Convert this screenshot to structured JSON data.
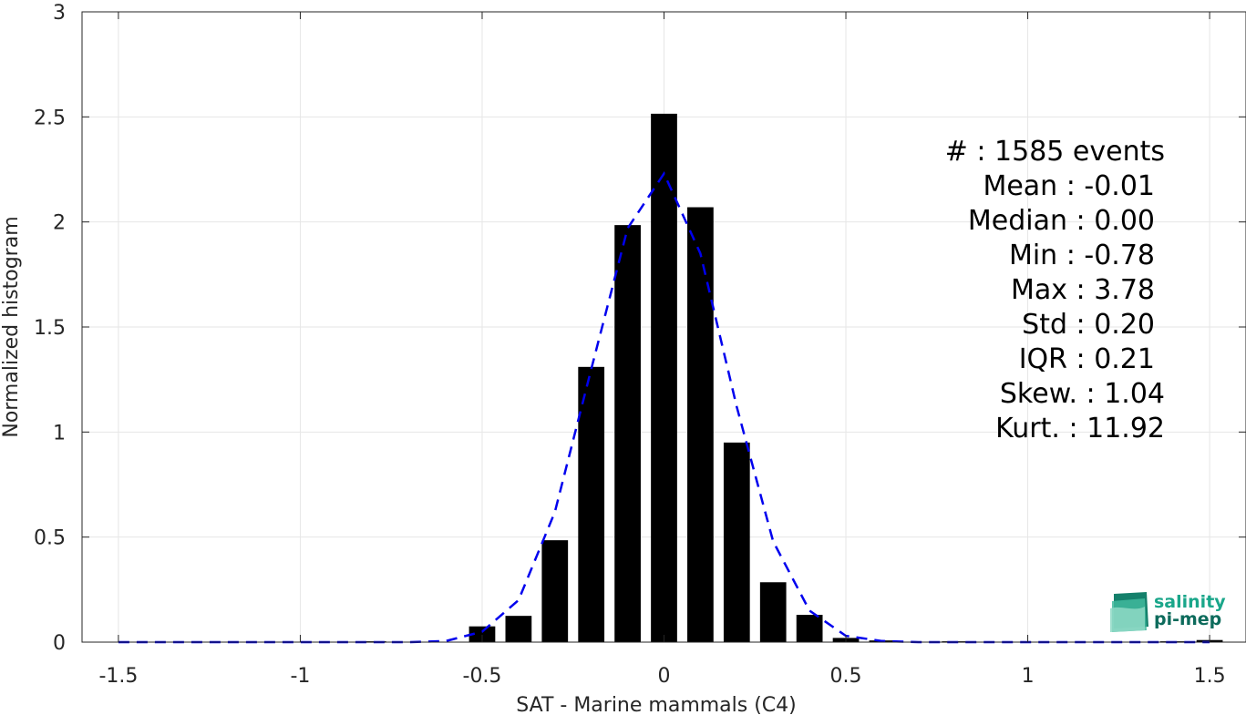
{
  "chart_data": {
    "type": "bar",
    "xlabel": "SAT - Marine mammals (C4)",
    "ylabel": "Normalized histogram",
    "xlim": [
      -1.6,
      1.6
    ],
    "ylim": [
      0,
      3
    ],
    "grid": true,
    "xticks": [
      "-1.5",
      "-1",
      "-0.5",
      "0",
      "0.5",
      "1",
      "1.5"
    ],
    "yticks": [
      "0",
      "0.5",
      "1",
      "1.5",
      "2",
      "2.5",
      "3"
    ],
    "bar_width": 0.072,
    "bars": {
      "x": [
        -0.8,
        -0.5,
        -0.4,
        -0.3,
        -0.2,
        -0.1,
        0.0,
        0.1,
        0.2,
        0.3,
        0.4,
        0.5,
        0.6,
        0.8,
        1.4,
        1.5
      ],
      "values": [
        0.004,
        0.075,
        0.125,
        0.485,
        1.31,
        1.985,
        2.515,
        2.07,
        0.95,
        0.285,
        0.13,
        0.02,
        0.008,
        0.004,
        0.004,
        0.01
      ]
    },
    "fit_curve": {
      "style": "dashed",
      "x": [
        -1.5,
        -1.4,
        -1.3,
        -1.2,
        -1.1,
        -1.0,
        -0.9,
        -0.8,
        -0.7,
        -0.6,
        -0.5,
        -0.4,
        -0.3,
        -0.2,
        -0.1,
        0.0,
        0.1,
        0.2,
        0.3,
        0.4,
        0.5,
        0.6,
        0.7,
        0.8,
        0.9,
        1.0,
        1.1,
        1.2,
        1.3,
        1.4,
        1.5
      ],
      "y": [
        0,
        0,
        0,
        0,
        0,
        0,
        0,
        0,
        0,
        0.005,
        0.05,
        0.2,
        0.62,
        1.3,
        1.97,
        2.23,
        1.85,
        1.12,
        0.48,
        0.15,
        0.03,
        0.005,
        0,
        0,
        0,
        0,
        0,
        0,
        0,
        0,
        0
      ]
    },
    "colors": {
      "bars": "#000000",
      "fit_curve": "#0000ee",
      "grid": "#e6e6e6",
      "axes": "#262626"
    },
    "stats_annotation": {
      "lines": [
        "#  : 1585 events",
        "Mean : -0.01",
        "Median : 0.00",
        "Min : -0.78",
        "Max : 3.78",
        "Std : 0.20",
        "IQR : 0.21",
        "Skew. : 1.04",
        "Kurt. : 11.92"
      ],
      "placement": "top-right"
    }
  },
  "logo": {
    "name": "salinity-pi-mep-logo",
    "line1": "salinity",
    "line2": "pi-mep",
    "color_line1": "#1aa68a",
    "color_line2": "#0d6b5c",
    "placement": "bottom-right"
  }
}
